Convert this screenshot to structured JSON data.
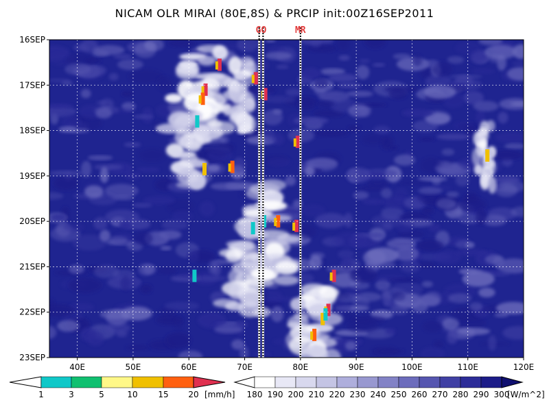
{
  "title": "NICAM OLR MIRAI (80E,8S) & PRCIP init:00Z16SEP2011",
  "chart_data": {
    "type": "heatmap",
    "title": "NICAM OLR MIRAI (80E,8S) & PRCIP init:00Z16SEP2011",
    "x_ticks": [
      "40E",
      "50E",
      "60E",
      "70E",
      "80E",
      "90E",
      "100E",
      "110E",
      "120E"
    ],
    "x_tick_values": [
      40,
      50,
      60,
      70,
      80,
      90,
      100,
      110,
      120
    ],
    "xlim": [
      35,
      120
    ],
    "y_ticks": [
      "16SEP",
      "17SEP",
      "18SEP",
      "19SEP",
      "20SEP",
      "21SEP",
      "22SEP",
      "23SEP"
    ],
    "ylim": [
      "16SEP",
      "23SEP"
    ],
    "grid": true,
    "markers": [
      {
        "label": "GO",
        "lon": [
          72.6,
          73.3
        ]
      },
      {
        "label": "MR",
        "lon": [
          80.0
        ]
      }
    ],
    "precip_colorbar": {
      "labels": [
        "1",
        "3",
        "5",
        "10",
        "15",
        "20"
      ],
      "unit": "[mm/h]",
      "colors": [
        "#10c8c8",
        "#10c070",
        "#fff888",
        "#f0c000",
        "#ff6010",
        "#e03050"
      ]
    },
    "olr_colorbar": {
      "labels": [
        "180",
        "190",
        "200",
        "210",
        "220",
        "230",
        "240",
        "250",
        "260",
        "270",
        "280",
        "290",
        "300"
      ],
      "unit": "[W/m^2]",
      "colors": [
        "#ffffff",
        "#e8e8f6",
        "#d8d8ee",
        "#c4c4e4",
        "#aeaedc",
        "#9898d0",
        "#8282c6",
        "#6c6cbc",
        "#5656b0",
        "#4040a4",
        "#2c2c98",
        "#1c1c88",
        "#101070"
      ]
    },
    "convective_bands": [
      {
        "lon": 63,
        "time_start": 0.2,
        "time_end": 2.2,
        "width": 5
      },
      {
        "lon": 60,
        "time_start": 1.0,
        "time_end": 3.2,
        "width": 5
      },
      {
        "lon": 69,
        "time_start": 0.5,
        "time_end": 2.0,
        "width": 3
      },
      {
        "lon": 74,
        "time_start": 3.2,
        "time_end": 5.3,
        "width": 6
      },
      {
        "lon": 70,
        "time_start": 4.5,
        "time_end": 6.0,
        "width": 5
      },
      {
        "lon": 82,
        "time_start": 5.5,
        "time_end": 7.0,
        "width": 5
      },
      {
        "lon": 113,
        "time_start": 1.9,
        "time_end": 3.2,
        "width": 2
      }
    ],
    "precip_cells": [
      {
        "lon": 65.5,
        "time": 0.55,
        "level": 5
      },
      {
        "lon": 63.0,
        "time": 1.1,
        "level": 5
      },
      {
        "lon": 62.5,
        "time": 1.3,
        "level": 4
      },
      {
        "lon": 73.7,
        "time": 1.2,
        "level": 5
      },
      {
        "lon": 72.0,
        "time": 0.85,
        "level": 5
      },
      {
        "lon": 61.5,
        "time": 1.8,
        "level": 0
      },
      {
        "lon": 79.5,
        "time": 2.25,
        "level": 5
      },
      {
        "lon": 62.8,
        "time": 2.85,
        "level": 3
      },
      {
        "lon": 67.8,
        "time": 2.8,
        "level": 4
      },
      {
        "lon": 73.5,
        "time": 4.0,
        "level": 0
      },
      {
        "lon": 71.5,
        "time": 4.15,
        "level": 0
      },
      {
        "lon": 76.0,
        "time": 4.0,
        "level": 4
      },
      {
        "lon": 79.3,
        "time": 4.1,
        "level": 5
      },
      {
        "lon": 61.0,
        "time": 5.2,
        "level": 0
      },
      {
        "lon": 86.0,
        "time": 5.2,
        "level": 5
      },
      {
        "lon": 85.0,
        "time": 5.95,
        "level": 5
      },
      {
        "lon": 84.0,
        "time": 6.15,
        "level": 3
      },
      {
        "lon": 82.5,
        "time": 6.5,
        "level": 4
      },
      {
        "lon": 84.5,
        "time": 6.05,
        "level": 0
      },
      {
        "lon": 113.5,
        "time": 2.55,
        "level": 3
      }
    ]
  }
}
